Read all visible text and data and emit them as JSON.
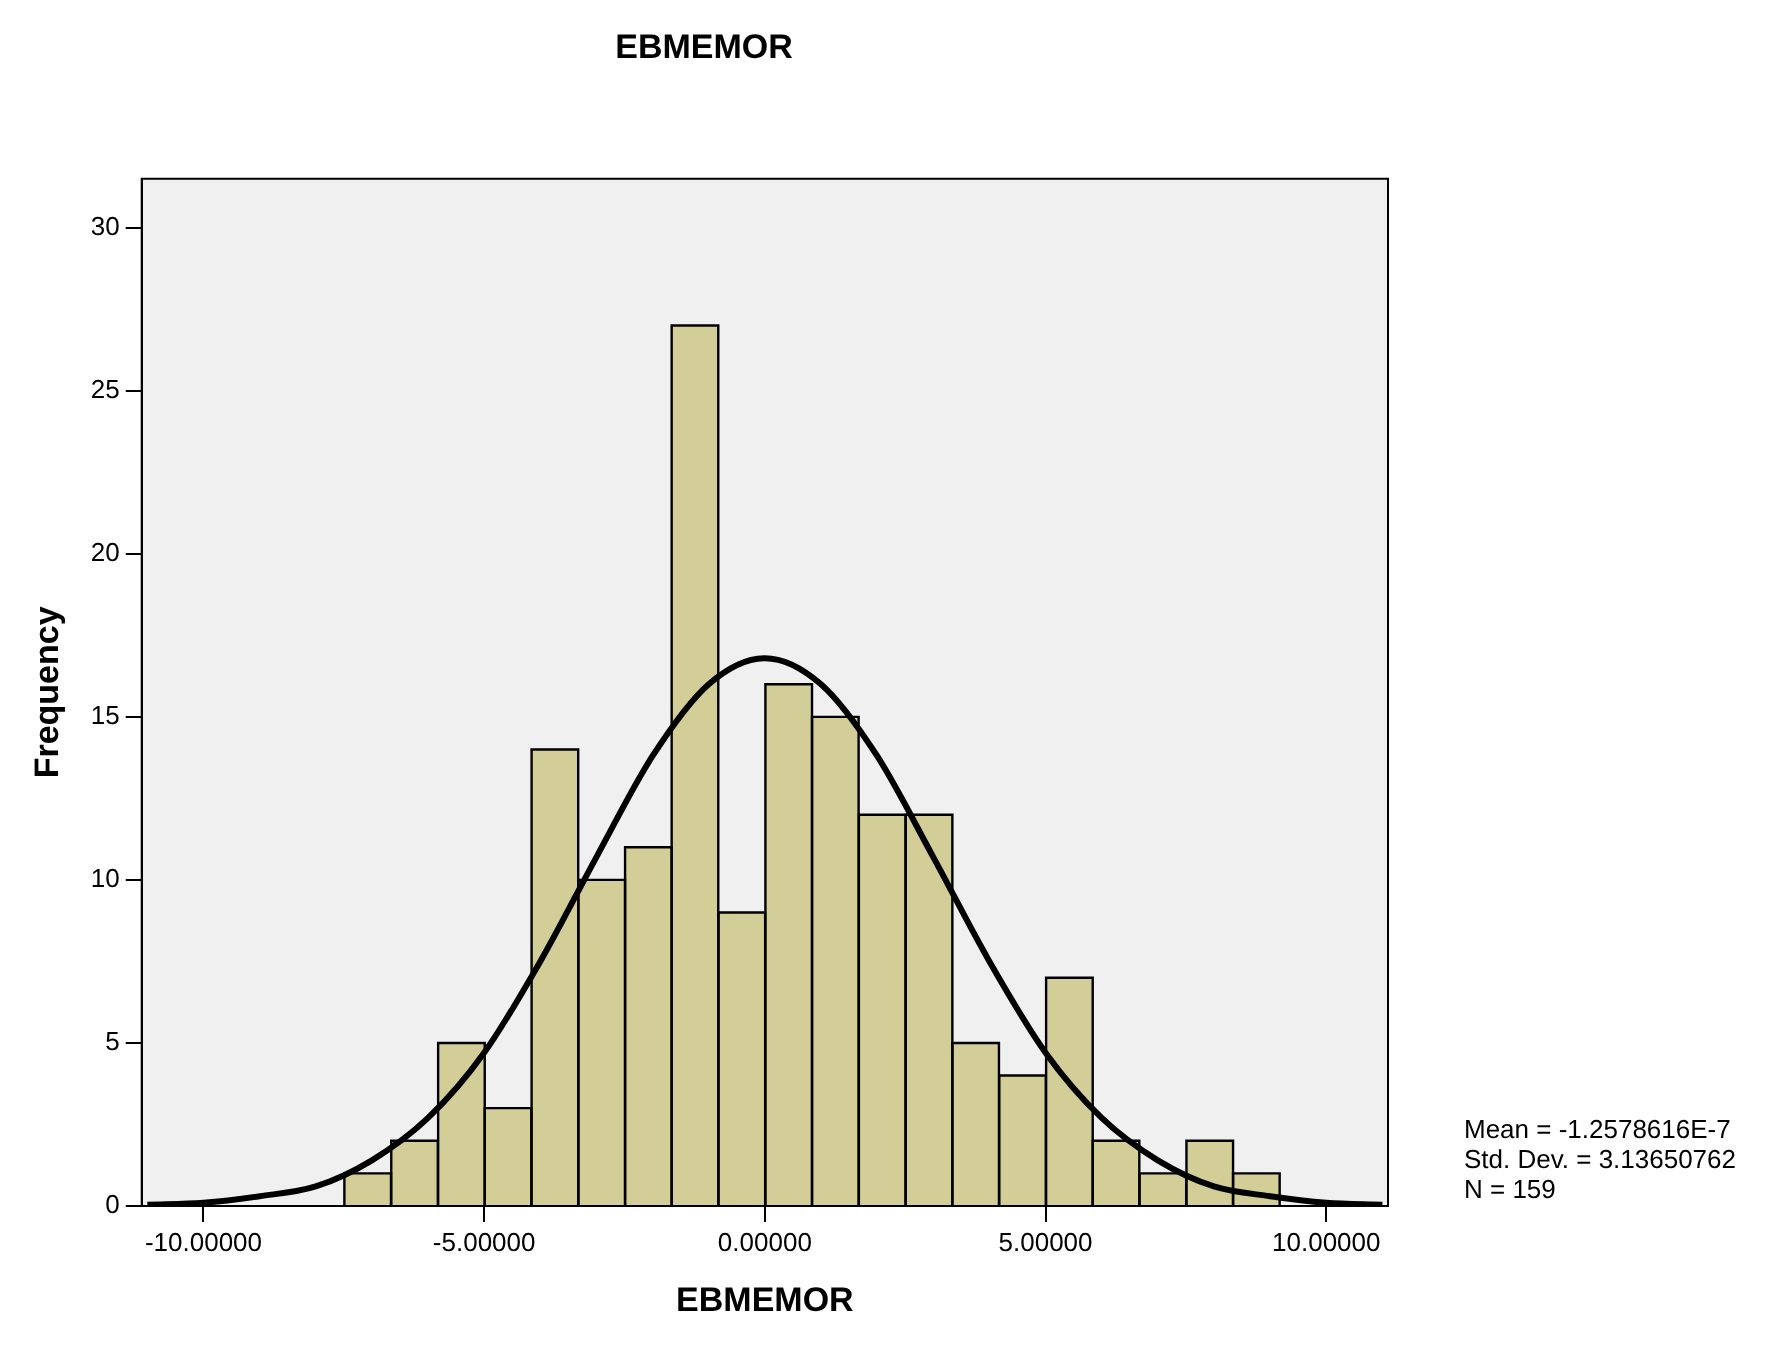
{
  "chart_data": {
    "type": "histogram",
    "title": "EBMEMOR",
    "xlabel": "EBMEMOR",
    "ylabel": "Frequency",
    "bins": [
      -7.49,
      -6.66,
      -5.82,
      -4.99,
      -4.16,
      -3.32,
      -2.49,
      -1.66,
      -0.83,
      0.01,
      0.84,
      1.67,
      2.51,
      3.34,
      4.17,
      5.01,
      5.84,
      6.67,
      7.51,
      8.34,
      9.17
    ],
    "values": [
      1,
      2,
      5,
      3,
      14,
      10,
      11,
      27,
      9,
      16,
      15,
      12,
      12,
      5,
      4,
      7,
      2,
      1,
      2,
      1
    ],
    "color": "#d3ce98",
    "series": [
      {
        "type": "line",
        "color": "#000000",
        "x": [
          -11,
          -10,
          -9,
          -8,
          -7,
          -6,
          -5,
          -4,
          -3,
          -2,
          -1,
          0,
          1,
          2,
          3,
          4,
          5,
          6,
          7,
          8,
          9,
          10,
          11
        ],
        "values": [
          0.04,
          0.1,
          0.3,
          0.6,
          1.4,
          2.7,
          4.7,
          7.5,
          10.7,
          13.8,
          16.0,
          16.8,
          16.0,
          13.8,
          10.7,
          7.5,
          4.7,
          2.7,
          1.4,
          0.6,
          0.3,
          0.1,
          0.04
        ]
      }
    ],
    "xlim": [
      -11.1,
      11.1
    ],
    "xticks": [
      {
        "value": -10,
        "label": "-10.00000"
      },
      {
        "value": -5,
        "label": "-5.00000"
      },
      {
        "value": 0,
        "label": "0.00000"
      },
      {
        "value": 5,
        "label": "5.00000"
      },
      {
        "value": 10,
        "label": "10.00000"
      }
    ],
    "ylim": [
      0,
      31.5
    ],
    "yticks": [
      0,
      5,
      10,
      15,
      20,
      25,
      30
    ],
    "grid": false,
    "legend": false,
    "marker": "none",
    "line_style": "solid",
    "annotations": [
      "Mean = -1.2578616E-7",
      "Std. Dev. = 3.13650762",
      "N = 159"
    ]
  }
}
